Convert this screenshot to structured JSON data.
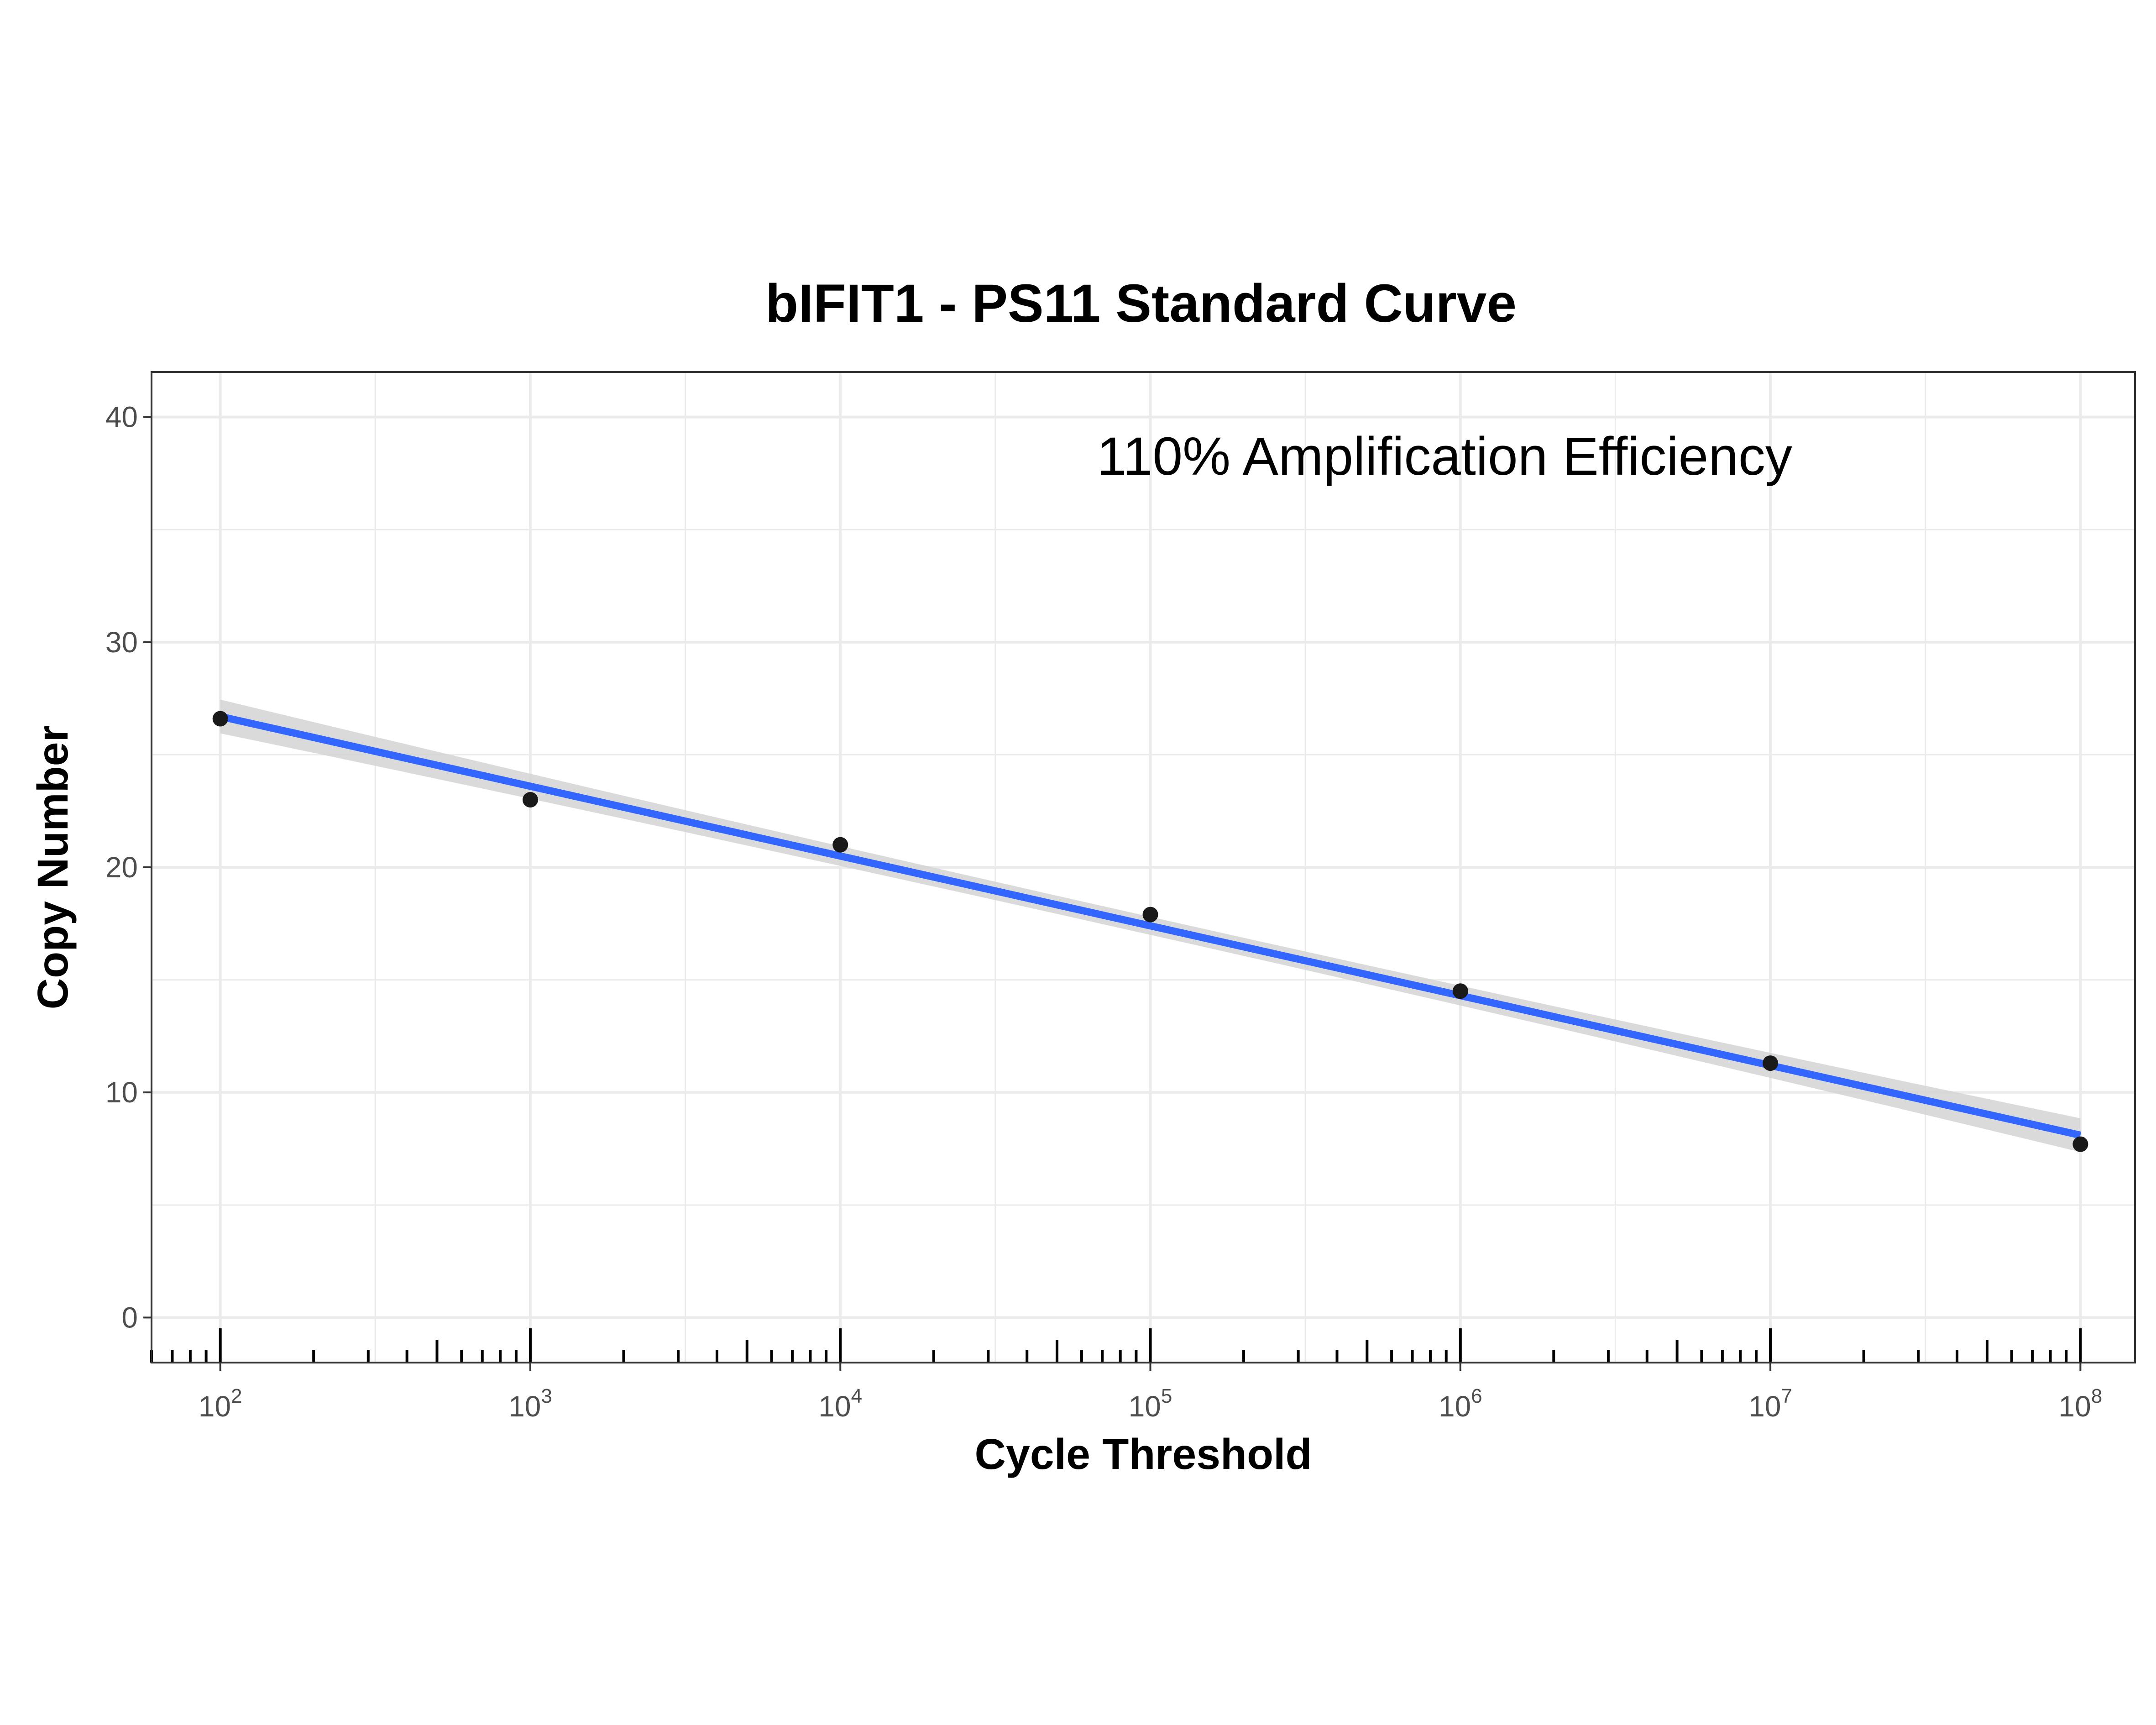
{
  "chart_data": {
    "type": "scatter",
    "title": "bIFIT1 - PS11 Standard Curve",
    "xlabel": "Cycle Threshold",
    "ylabel": "Copy Number",
    "annotation": "110% Amplification Efficiency",
    "x_scale": "log10",
    "xlim": [
      60,
      150000000
    ],
    "ylim": [
      -2,
      42
    ],
    "x_ticks": [
      {
        "value": 100,
        "base": "10",
        "exp": "2"
      },
      {
        "value": 1000,
        "base": "10",
        "exp": "3"
      },
      {
        "value": 10000,
        "base": "10",
        "exp": "4"
      },
      {
        "value": 100000,
        "base": "10",
        "exp": "5"
      },
      {
        "value": 1000000,
        "base": "10",
        "exp": "6"
      },
      {
        "value": 10000000,
        "base": "10",
        "exp": "7"
      },
      {
        "value": 100000000,
        "base": "10",
        "exp": "8"
      }
    ],
    "y_ticks": [
      0,
      10,
      20,
      30,
      40
    ],
    "grid": true,
    "points": [
      {
        "x": 100,
        "y": 26.6
      },
      {
        "x": 1000,
        "y": 23.0
      },
      {
        "x": 10000,
        "y": 21.0
      },
      {
        "x": 100000,
        "y": 17.9
      },
      {
        "x": 1000000,
        "y": 14.5
      },
      {
        "x": 10000000,
        "y": 11.3
      },
      {
        "x": 100000000,
        "y": 7.7
      }
    ],
    "fit": {
      "x": [
        100,
        100000000
      ],
      "y": [
        26.7,
        8.1
      ],
      "color": "#3366FF",
      "band_color": "#d3d3d3",
      "band_halfwidth": [
        0.75,
        0.4,
        0.75
      ]
    },
    "colors": {
      "points": "#1a1a1a",
      "grid": "#ebebeb",
      "panel_border": "#333333"
    }
  }
}
